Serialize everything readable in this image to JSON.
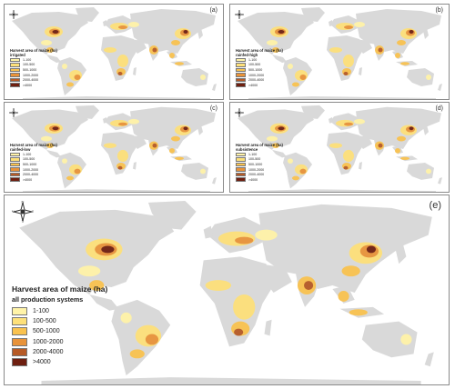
{
  "panels": [
    {
      "label": "(a)",
      "legend_title": "Harvest area of maize (ha)",
      "legend_subtitle": "irrigated"
    },
    {
      "label": "(b)",
      "legend_title": "Harvest area of maize (ha)",
      "legend_subtitle": "rainfed-high"
    },
    {
      "label": "(c)",
      "legend_title": "Harvest area of maize (ha)",
      "legend_subtitle": "rainfed-low"
    },
    {
      "label": "(d)",
      "legend_title": "Harvest area of maize (ha)",
      "legend_subtitle": "subsistence"
    },
    {
      "label": "(e)",
      "legend_title": "Harvest area of maize (ha)",
      "legend_subtitle": "all production systems"
    }
  ],
  "compass_letters": {
    "n": "N",
    "s": "S",
    "e": "E",
    "w": "W"
  },
  "legend_classes": [
    "1-100",
    "100-500",
    "500-1000",
    "1000-2000",
    "2000-4000",
    ">4000"
  ],
  "legend_colors": [
    "#fff3a8",
    "#fde07a",
    "#f9c24f",
    "#e8933a",
    "#b65a26",
    "#6e1f10"
  ],
  "land_color": "#d9d9d9"
}
